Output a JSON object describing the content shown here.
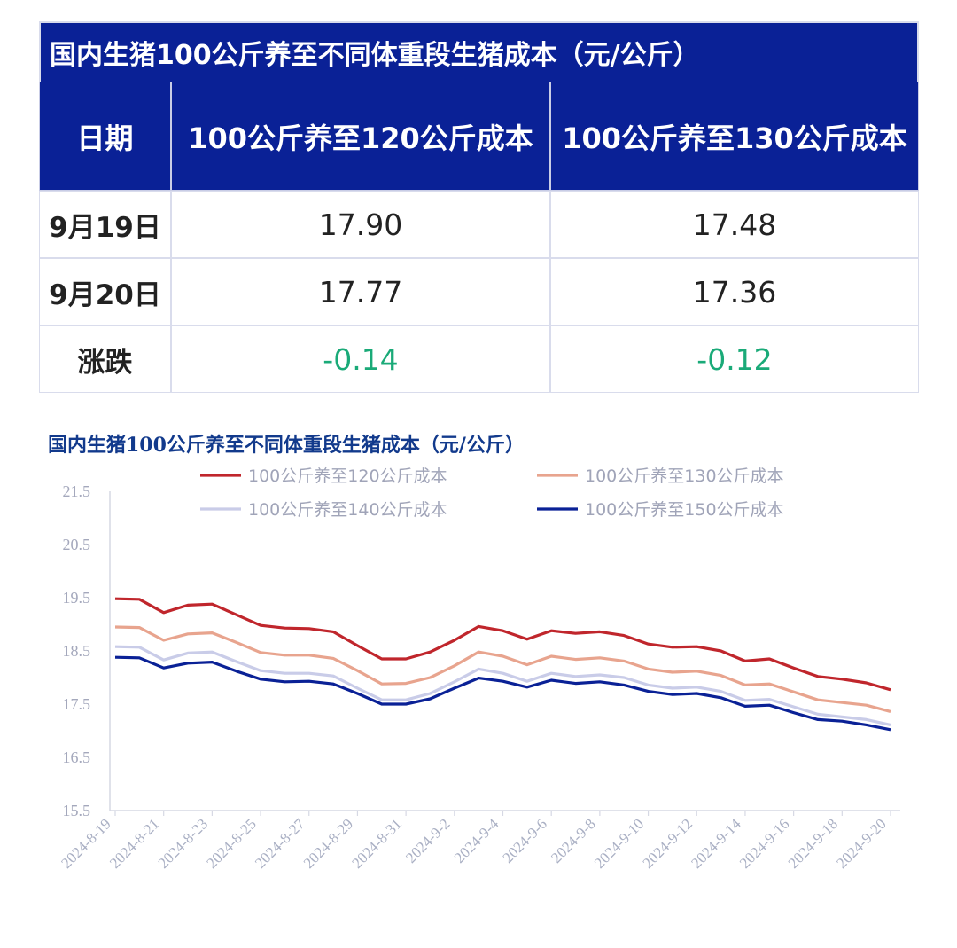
{
  "table": {
    "title": "国内生猪100公斤养至不同体重段生猪成本（元/公斤）",
    "headers": [
      "日期",
      "100公斤养至120公斤成本",
      "100公斤养至130公斤成本"
    ],
    "rows": [
      {
        "label": "9月19日",
        "c120": "17.90",
        "c130": "17.48"
      },
      {
        "label": "9月20日",
        "c120": "17.77",
        "c130": "17.36"
      },
      {
        "label": "涨跌",
        "c120": "-0.14",
        "c130": "-0.12"
      }
    ],
    "change_color": "#1aaa78",
    "header_bg": "#0a2196"
  },
  "chart_data": {
    "type": "line",
    "title": "国内生猪100公斤养至不同体重段生猪成本（元/公斤）",
    "legend_position": "top",
    "grid": false,
    "ylim": [
      15.5,
      21.5
    ],
    "yticks": [
      "15.5",
      "16.5",
      "17.5",
      "18.5",
      "19.5",
      "20.5",
      "21.5"
    ],
    "x": [
      "2024-8-19",
      "2024-8-20",
      "2024-8-21",
      "2024-8-22",
      "2024-8-23",
      "2024-8-24",
      "2024-8-25",
      "2024-8-26",
      "2024-8-27",
      "2024-8-28",
      "2024-8-29",
      "2024-8-30",
      "2024-8-31",
      "2024-9-1",
      "2024-9-2",
      "2024-9-3",
      "2024-9-4",
      "2024-9-5",
      "2024-9-6",
      "2024-9-7",
      "2024-9-8",
      "2024-9-9",
      "2024-9-10",
      "2024-9-11",
      "2024-9-12",
      "2024-9-13",
      "2024-9-14",
      "2024-9-15",
      "2024-9-16",
      "2024-9-17",
      "2024-9-18",
      "2024-9-19",
      "2024-9-20"
    ],
    "xticks": [
      "2024-8-19",
      "2024-8-21",
      "2024-8-23",
      "2024-8-25",
      "2024-8-27",
      "2024-8-29",
      "2024-8-31",
      "2024-9-2",
      "2024-9-4",
      "2024-9-6",
      "2024-9-8",
      "2024-9-10",
      "2024-9-12",
      "2024-9-14",
      "2024-9-16",
      "2024-9-18",
      "2024-9-20"
    ],
    "series": [
      {
        "name": "100公斤养至120公斤成本",
        "color": "#c0262c",
        "values": [
          19.48,
          19.47,
          19.22,
          19.36,
          19.38,
          19.18,
          18.98,
          18.93,
          18.92,
          18.86,
          18.6,
          18.35,
          18.35,
          18.48,
          18.7,
          18.96,
          18.88,
          18.72,
          18.88,
          18.83,
          18.86,
          18.79,
          18.63,
          18.57,
          18.58,
          18.5,
          18.31,
          18.35,
          18.18,
          18.02,
          17.97,
          17.9,
          17.77
        ]
      },
      {
        "name": "100公斤养至130公斤成本",
        "color": "#e8a48e",
        "values": [
          18.95,
          18.94,
          18.7,
          18.82,
          18.84,
          18.66,
          18.47,
          18.42,
          18.42,
          18.36,
          18.13,
          17.88,
          17.89,
          18.0,
          18.22,
          18.48,
          18.4,
          18.24,
          18.4,
          18.34,
          18.37,
          18.31,
          18.16,
          18.1,
          18.12,
          18.04,
          17.86,
          17.88,
          17.73,
          17.58,
          17.53,
          17.48,
          17.36
        ]
      },
      {
        "name": "100公斤养至140公斤成本",
        "color": "#c9cce8",
        "values": [
          18.58,
          18.57,
          18.33,
          18.46,
          18.48,
          18.3,
          18.13,
          18.08,
          18.08,
          18.03,
          17.8,
          17.58,
          17.58,
          17.7,
          17.92,
          18.16,
          18.08,
          17.93,
          18.08,
          18.02,
          18.05,
          18.0,
          17.86,
          17.8,
          17.82,
          17.74,
          17.57,
          17.59,
          17.45,
          17.31,
          17.26,
          17.21,
          17.11
        ]
      },
      {
        "name": "100公斤养至150公斤成本",
        "color": "#0a2196",
        "values": [
          18.38,
          18.37,
          18.18,
          18.27,
          18.29,
          18.12,
          17.97,
          17.92,
          17.93,
          17.88,
          17.7,
          17.5,
          17.5,
          17.6,
          17.8,
          17.99,
          17.93,
          17.82,
          17.95,
          17.89,
          17.92,
          17.86,
          17.74,
          17.68,
          17.7,
          17.62,
          17.46,
          17.48,
          17.34,
          17.21,
          17.18,
          17.11,
          17.02
        ]
      }
    ]
  }
}
